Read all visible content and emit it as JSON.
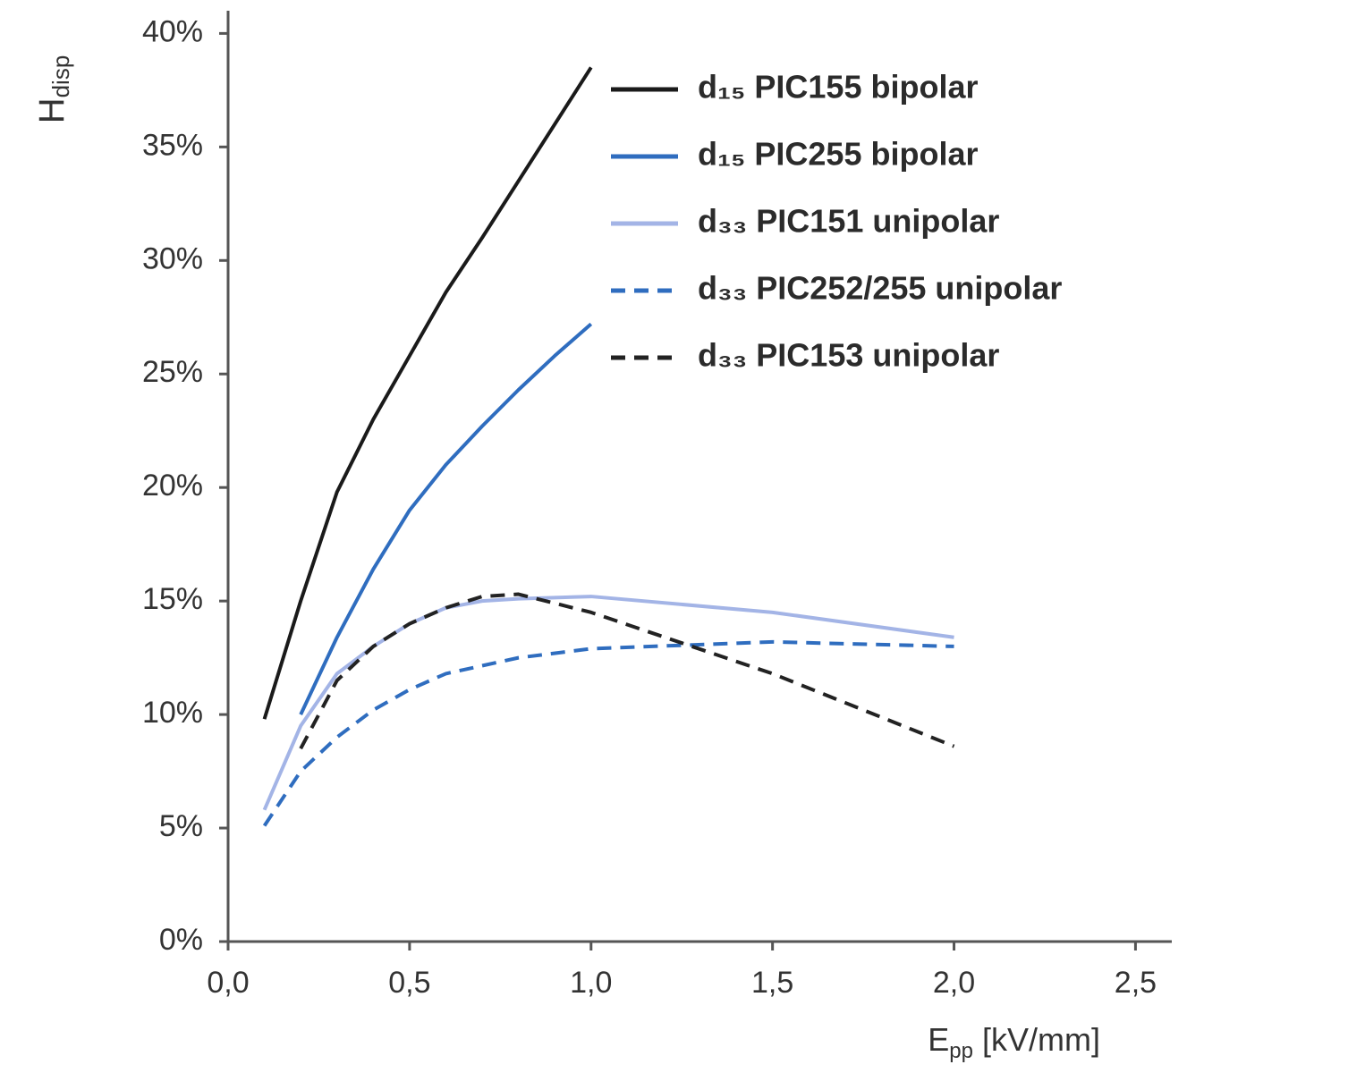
{
  "chart_data": {
    "type": "line",
    "y_label": {
      "main": "H",
      "sub": "disp"
    },
    "x_label": {
      "main": "E",
      "sub": "pp",
      "unit": " [kV/mm]"
    },
    "xlim": [
      0,
      2.6
    ],
    "ylim": [
      0,
      41
    ],
    "xticks": [
      {
        "value": 0,
        "label": "0,0"
      },
      {
        "value": 0.5,
        "label": "0,5"
      },
      {
        "value": 1,
        "label": "1,0"
      },
      {
        "value": 1.5,
        "label": "1,5"
      },
      {
        "value": 2,
        "label": "2,0"
      },
      {
        "value": 2.5,
        "label": "2,5"
      }
    ],
    "yticks": [
      {
        "value": 0,
        "label": "0%"
      },
      {
        "value": 5,
        "label": "5%"
      },
      {
        "value": 10,
        "label": "10%"
      },
      {
        "value": 15,
        "label": "15%"
      },
      {
        "value": 20,
        "label": "20%"
      },
      {
        "value": 25,
        "label": "25%"
      },
      {
        "value": 30,
        "label": "30%"
      },
      {
        "value": 35,
        "label": "35%"
      },
      {
        "value": 40,
        "label": "40%"
      }
    ],
    "grid": false,
    "series": [
      {
        "name": "d₁₅ PIC155 bipolar",
        "color": "#1a1a1a",
        "line_style": "solid",
        "x": [
          0.1,
          0.2,
          0.3,
          0.4,
          0.5,
          0.6,
          0.7,
          0.8,
          0.9,
          1.0
        ],
        "values": [
          9.8,
          15,
          19.8,
          23,
          25.8,
          28.6,
          31,
          33.5,
          36,
          38.5
        ]
      },
      {
        "name": "d₁₅ PIC255 bipolar",
        "color": "#2f6dbf",
        "line_style": "solid",
        "x": [
          0.2,
          0.3,
          0.4,
          0.5,
          0.6,
          0.7,
          0.8,
          0.9,
          1.0
        ],
        "values": [
          10,
          13.4,
          16.4,
          19,
          21,
          22.7,
          24.3,
          25.8,
          27.2
        ]
      },
      {
        "name": "d₃₃ PIC151 unipolar",
        "color": "#a3b4e6",
        "line_style": "solid",
        "x": [
          0.1,
          0.2,
          0.3,
          0.4,
          0.5,
          0.6,
          0.7,
          0.8,
          1.0,
          1.5,
          2.0
        ],
        "values": [
          5.8,
          9.5,
          11.8,
          13,
          14,
          14.7,
          15.0,
          15.1,
          15.2,
          14.5,
          13.4
        ]
      },
      {
        "name": "d₃₃ PIC252/255 unipolar",
        "color": "#2f6dbf",
        "line_style": "dashed",
        "x": [
          0.1,
          0.2,
          0.3,
          0.4,
          0.5,
          0.6,
          0.8,
          1.0,
          1.5,
          2.0
        ],
        "values": [
          5.1,
          7.5,
          9.0,
          10.2,
          11.1,
          11.8,
          12.5,
          12.9,
          13.2,
          13.0
        ]
      },
      {
        "name": "d₃₃ PIC153 unipolar",
        "color": "#222222",
        "line_style": "dashed",
        "x": [
          0.2,
          0.3,
          0.4,
          0.5,
          0.6,
          0.7,
          0.8,
          1.0,
          1.5,
          2.0
        ],
        "values": [
          8.5,
          11.5,
          13,
          14,
          14.7,
          15.2,
          15.3,
          14.5,
          11.8,
          8.6
        ]
      }
    ]
  }
}
